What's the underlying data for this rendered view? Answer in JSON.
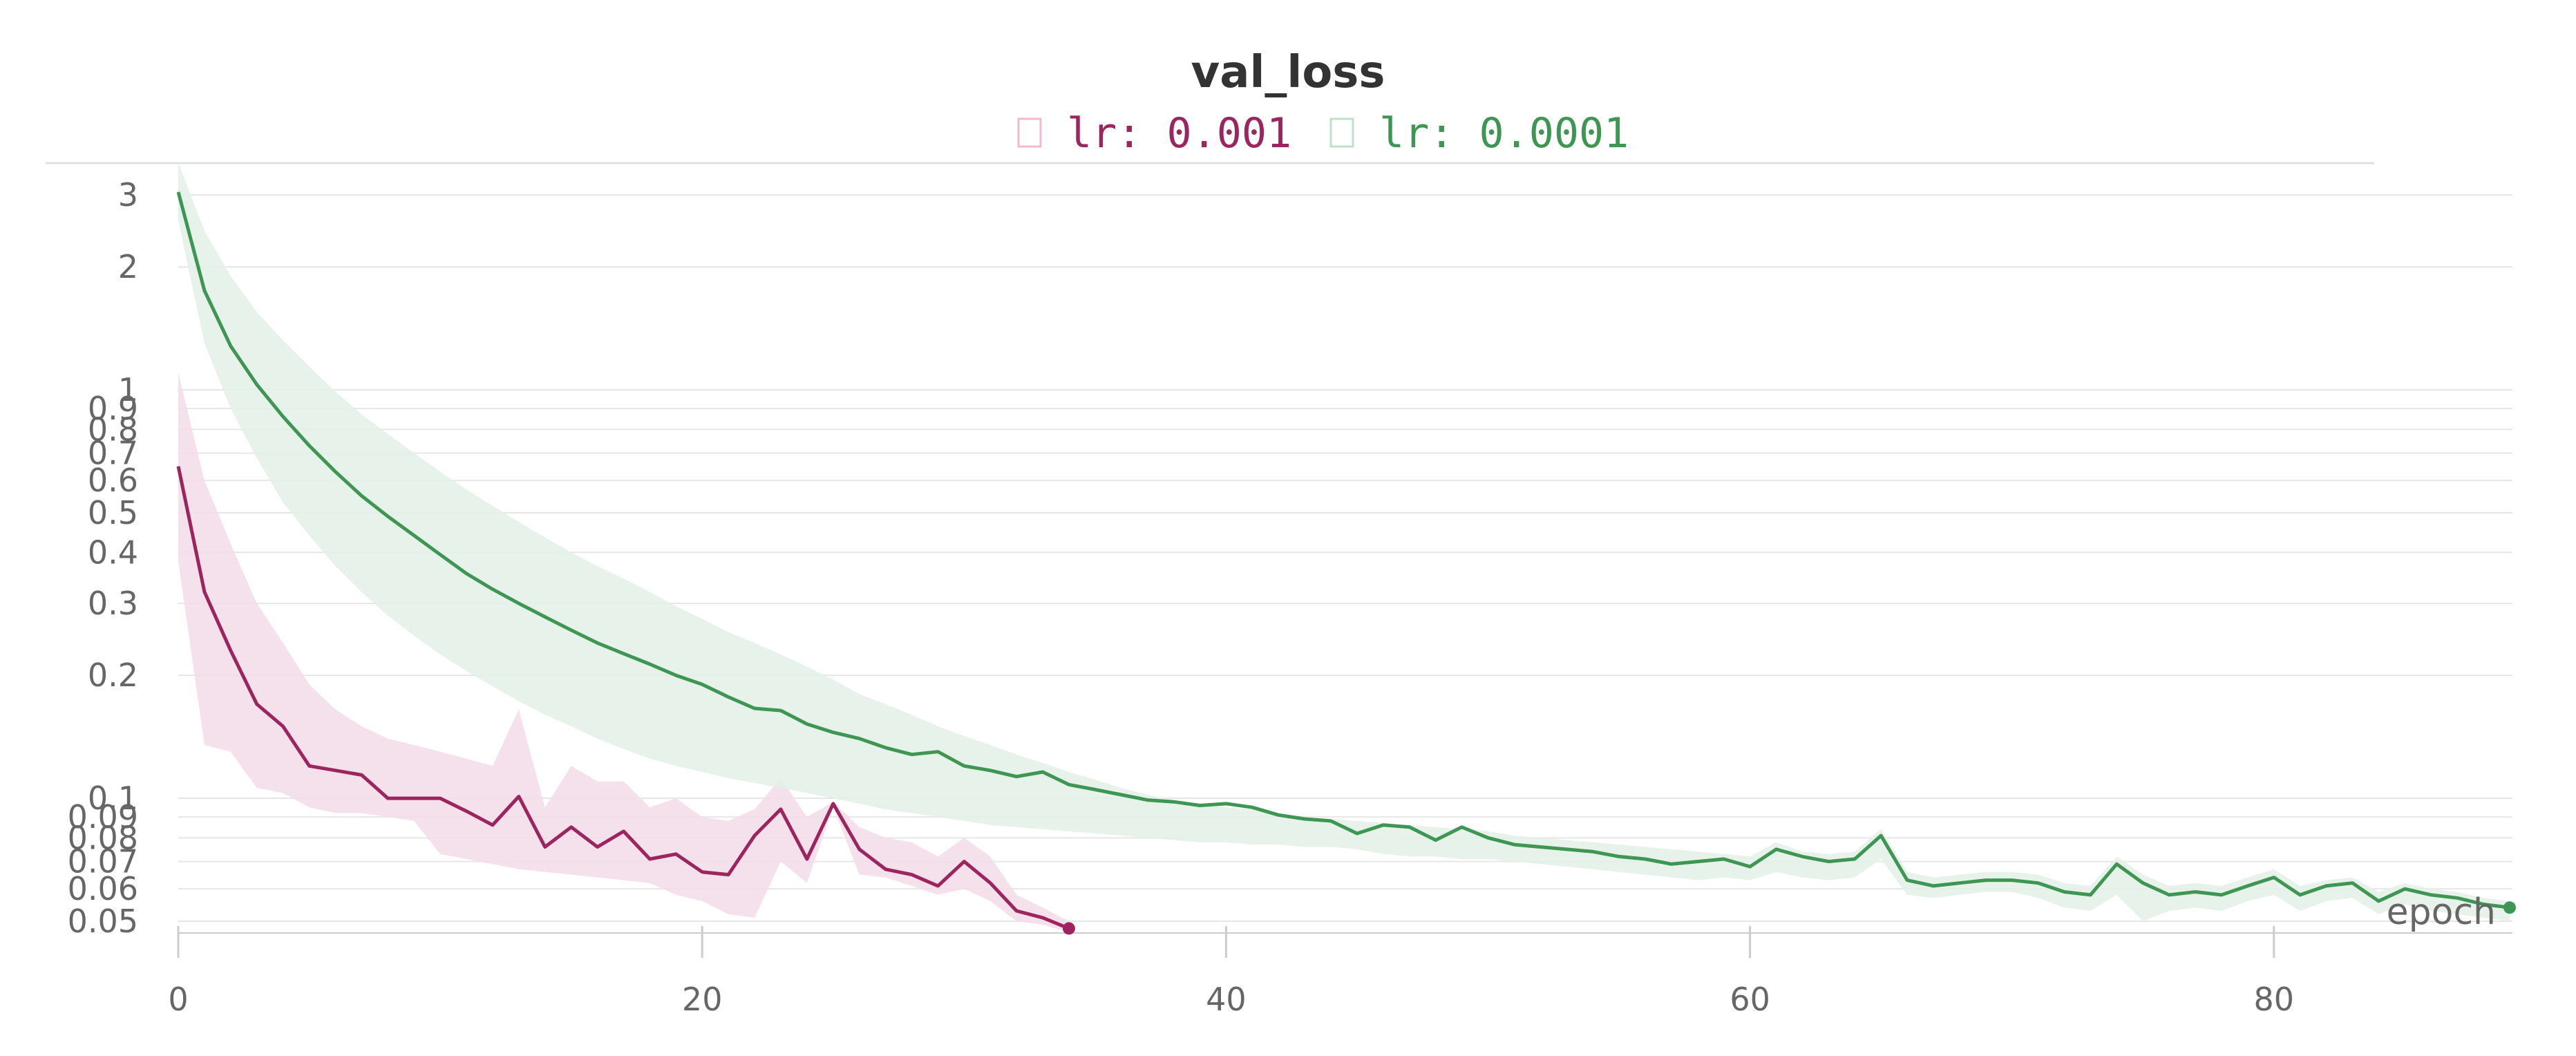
{
  "chart_data": {
    "type": "line",
    "title": "val_loss",
    "xlabel": "epoch",
    "ylabel": "",
    "y_scale": "log",
    "xlim": [
      0,
      89
    ],
    "ylim": [
      0.045,
      3.4
    ],
    "x_ticks": [
      0,
      20,
      40,
      60,
      80
    ],
    "x_tick_labels": [
      "0",
      "20",
      "40",
      "60",
      "80"
    ],
    "y_ticks": [
      0.05,
      0.06,
      0.07,
      0.08,
      0.09,
      0.1,
      0.2,
      0.3,
      0.4,
      0.5,
      0.6,
      0.7,
      0.8,
      0.9,
      1,
      2,
      3
    ],
    "y_tick_labels": [
      "0.05",
      "0.06",
      "0.07",
      "0.08",
      "0.09",
      "0.1",
      "0.2",
      "0.3",
      "0.4",
      "0.5",
      "0.6",
      "0.7",
      "0.8",
      "0.9",
      "1",
      "2",
      "3"
    ],
    "grid": true,
    "legend_position": "top-center",
    "series": [
      {
        "name": "lr: 0.001",
        "color": "#9c2560",
        "band_color": "#f2dce7",
        "x": [
          0,
          1,
          2,
          3,
          4,
          5,
          6,
          7,
          8,
          9,
          10,
          11,
          12,
          13,
          14,
          15,
          16,
          17,
          18,
          19,
          20,
          21,
          22,
          23,
          24,
          25,
          26,
          27,
          28,
          29,
          30,
          31,
          32,
          33,
          34
        ],
        "values": [
          0.65,
          0.32,
          0.23,
          0.17,
          0.15,
          0.12,
          0.117,
          0.114,
          0.1,
          0.1,
          0.1,
          0.093,
          0.086,
          0.101,
          0.076,
          0.085,
          0.076,
          0.083,
          0.071,
          0.073,
          0.066,
          0.065,
          0.081,
          0.094,
          0.071,
          0.097,
          0.075,
          0.067,
          0.065,
          0.061,
          0.07,
          0.062,
          0.053,
          0.051,
          0.048
        ],
        "band_upper": [
          1.1,
          0.6,
          0.42,
          0.3,
          0.24,
          0.19,
          0.165,
          0.15,
          0.14,
          0.135,
          0.13,
          0.125,
          0.12,
          0.165,
          0.095,
          0.12,
          0.11,
          0.11,
          0.095,
          0.1,
          0.09,
          0.088,
          0.094,
          0.112,
          0.09,
          0.098,
          0.085,
          0.08,
          0.078,
          0.072,
          0.08,
          0.072,
          0.058,
          0.054,
          0.05
        ],
        "band_lower": [
          0.38,
          0.135,
          0.13,
          0.106,
          0.103,
          0.095,
          0.092,
          0.092,
          0.09,
          0.088,
          0.073,
          0.071,
          0.069,
          0.067,
          0.066,
          0.065,
          0.064,
          0.063,
          0.062,
          0.058,
          0.056,
          0.052,
          0.051,
          0.07,
          0.062,
          0.095,
          0.065,
          0.064,
          0.061,
          0.058,
          0.06,
          0.056,
          0.05,
          0.049,
          0.047
        ]
      },
      {
        "name": "lr: 0.0001",
        "color": "#3d9651",
        "band_color": "#e2f0e6",
        "x": [
          0,
          1,
          2,
          3,
          4,
          5,
          6,
          7,
          8,
          9,
          10,
          11,
          12,
          13,
          14,
          15,
          16,
          17,
          18,
          19,
          20,
          21,
          22,
          23,
          24,
          25,
          26,
          27,
          28,
          29,
          30,
          31,
          32,
          33,
          34,
          35,
          36,
          37,
          38,
          39,
          40,
          41,
          42,
          43,
          44,
          45,
          46,
          47,
          48,
          49,
          50,
          51,
          52,
          53,
          54,
          55,
          56,
          57,
          58,
          59,
          60,
          61,
          62,
          63,
          64,
          65,
          66,
          67,
          68,
          69,
          70,
          71,
          72,
          73,
          74,
          75,
          76,
          77,
          78,
          79,
          80,
          81,
          82,
          83,
          84,
          85,
          86,
          87,
          88,
          89
        ],
        "values": [
          3.05,
          1.75,
          1.28,
          1.03,
          0.86,
          0.73,
          0.63,
          0.55,
          0.49,
          0.44,
          0.395,
          0.355,
          0.325,
          0.3,
          0.278,
          0.258,
          0.24,
          0.226,
          0.213,
          0.2,
          0.19,
          0.177,
          0.166,
          0.164,
          0.152,
          0.145,
          0.14,
          0.133,
          0.128,
          0.13,
          0.12,
          0.117,
          0.113,
          0.116,
          0.108,
          0.105,
          0.102,
          0.099,
          0.098,
          0.096,
          0.097,
          0.095,
          0.091,
          0.089,
          0.088,
          0.082,
          0.086,
          0.085,
          0.079,
          0.085,
          0.08,
          0.077,
          0.076,
          0.075,
          0.074,
          0.072,
          0.071,
          0.069,
          0.07,
          0.071,
          0.068,
          0.075,
          0.072,
          0.07,
          0.071,
          0.081,
          0.063,
          0.061,
          0.062,
          0.063,
          0.063,
          0.062,
          0.059,
          0.058,
          0.069,
          0.062,
          0.058,
          0.059,
          0.058,
          0.061,
          0.064,
          0.058,
          0.061,
          0.062,
          0.056,
          0.06,
          0.058,
          0.057,
          0.055,
          0.054
        ],
        "band_upper": [
          3.6,
          2.45,
          1.9,
          1.55,
          1.32,
          1.14,
          0.99,
          0.87,
          0.78,
          0.7,
          0.63,
          0.57,
          0.52,
          0.475,
          0.435,
          0.4,
          0.37,
          0.345,
          0.32,
          0.295,
          0.275,
          0.255,
          0.24,
          0.225,
          0.21,
          0.195,
          0.18,
          0.17,
          0.16,
          0.15,
          0.142,
          0.135,
          0.128,
          0.122,
          0.116,
          0.111,
          0.106,
          0.102,
          0.099,
          0.097,
          0.095,
          0.094,
          0.092,
          0.09,
          0.089,
          0.088,
          0.087,
          0.086,
          0.085,
          0.084,
          0.083,
          0.081,
          0.08,
          0.079,
          0.078,
          0.077,
          0.076,
          0.075,
          0.074,
          0.073,
          0.072,
          0.078,
          0.074,
          0.073,
          0.074,
          0.084,
          0.066,
          0.064,
          0.065,
          0.066,
          0.066,
          0.065,
          0.062,
          0.061,
          0.072,
          0.065,
          0.061,
          0.062,
          0.061,
          0.064,
          0.067,
          0.061,
          0.063,
          0.064,
          0.059,
          0.062,
          0.06,
          0.059,
          0.057,
          0.056
        ],
        "band_lower": [
          2.6,
          1.3,
          0.9,
          0.68,
          0.53,
          0.44,
          0.37,
          0.32,
          0.28,
          0.25,
          0.225,
          0.205,
          0.188,
          0.173,
          0.16,
          0.15,
          0.14,
          0.132,
          0.125,
          0.12,
          0.116,
          0.112,
          0.109,
          0.106,
          0.103,
          0.1,
          0.097,
          0.094,
          0.092,
          0.09,
          0.088,
          0.086,
          0.085,
          0.084,
          0.083,
          0.082,
          0.081,
          0.08,
          0.079,
          0.078,
          0.078,
          0.077,
          0.077,
          0.076,
          0.076,
          0.075,
          0.073,
          0.072,
          0.072,
          0.071,
          0.071,
          0.07,
          0.069,
          0.068,
          0.067,
          0.066,
          0.065,
          0.064,
          0.063,
          0.064,
          0.063,
          0.066,
          0.064,
          0.063,
          0.064,
          0.071,
          0.058,
          0.057,
          0.058,
          0.059,
          0.059,
          0.057,
          0.054,
          0.053,
          0.058,
          0.05,
          0.053,
          0.054,
          0.053,
          0.056,
          0.058,
          0.053,
          0.056,
          0.057,
          0.052,
          0.055,
          0.053,
          0.052,
          0.051,
          0.05
        ]
      }
    ]
  }
}
